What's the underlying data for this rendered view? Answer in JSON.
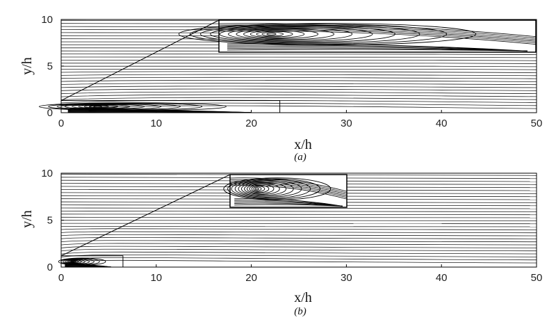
{
  "chart_data": [
    {
      "type": "streamline",
      "panel_label": "(a)",
      "xlabel": "x/h",
      "ylabel": "y/h",
      "xlim": [
        0,
        50
      ],
      "ylim": [
        0,
        10
      ],
      "xticks": [
        0,
        10,
        20,
        30,
        40,
        50
      ],
      "yticks": [
        0,
        5,
        10
      ],
      "recirculation_zone": {
        "x_start": 0,
        "x_end": 21,
        "height": 1.0,
        "vortex_center_x": 5,
        "vortex_center_y": 0.75
      },
      "inset": {
        "source_x": [
          0,
          23
        ],
        "source_y": [
          0,
          1.3
        ],
        "position": "top-right"
      }
    },
    {
      "type": "streamline",
      "panel_label": "(b)",
      "xlabel": "x/h",
      "ylabel": "y/h",
      "xlim": [
        0,
        50
      ],
      "ylim": [
        0,
        10
      ],
      "xticks": [
        0,
        10,
        20,
        30,
        40,
        50
      ],
      "yticks": [
        0,
        5,
        10
      ],
      "recirculation_zone": {
        "x_start": 0,
        "x_end": 5.5,
        "height": 0.9,
        "vortex_center_x": 1.5,
        "vortex_center_y": 0.6
      },
      "inset": {
        "source_x": [
          0,
          6.5
        ],
        "source_y": [
          0,
          1.2
        ],
        "position": "top-center"
      }
    }
  ]
}
